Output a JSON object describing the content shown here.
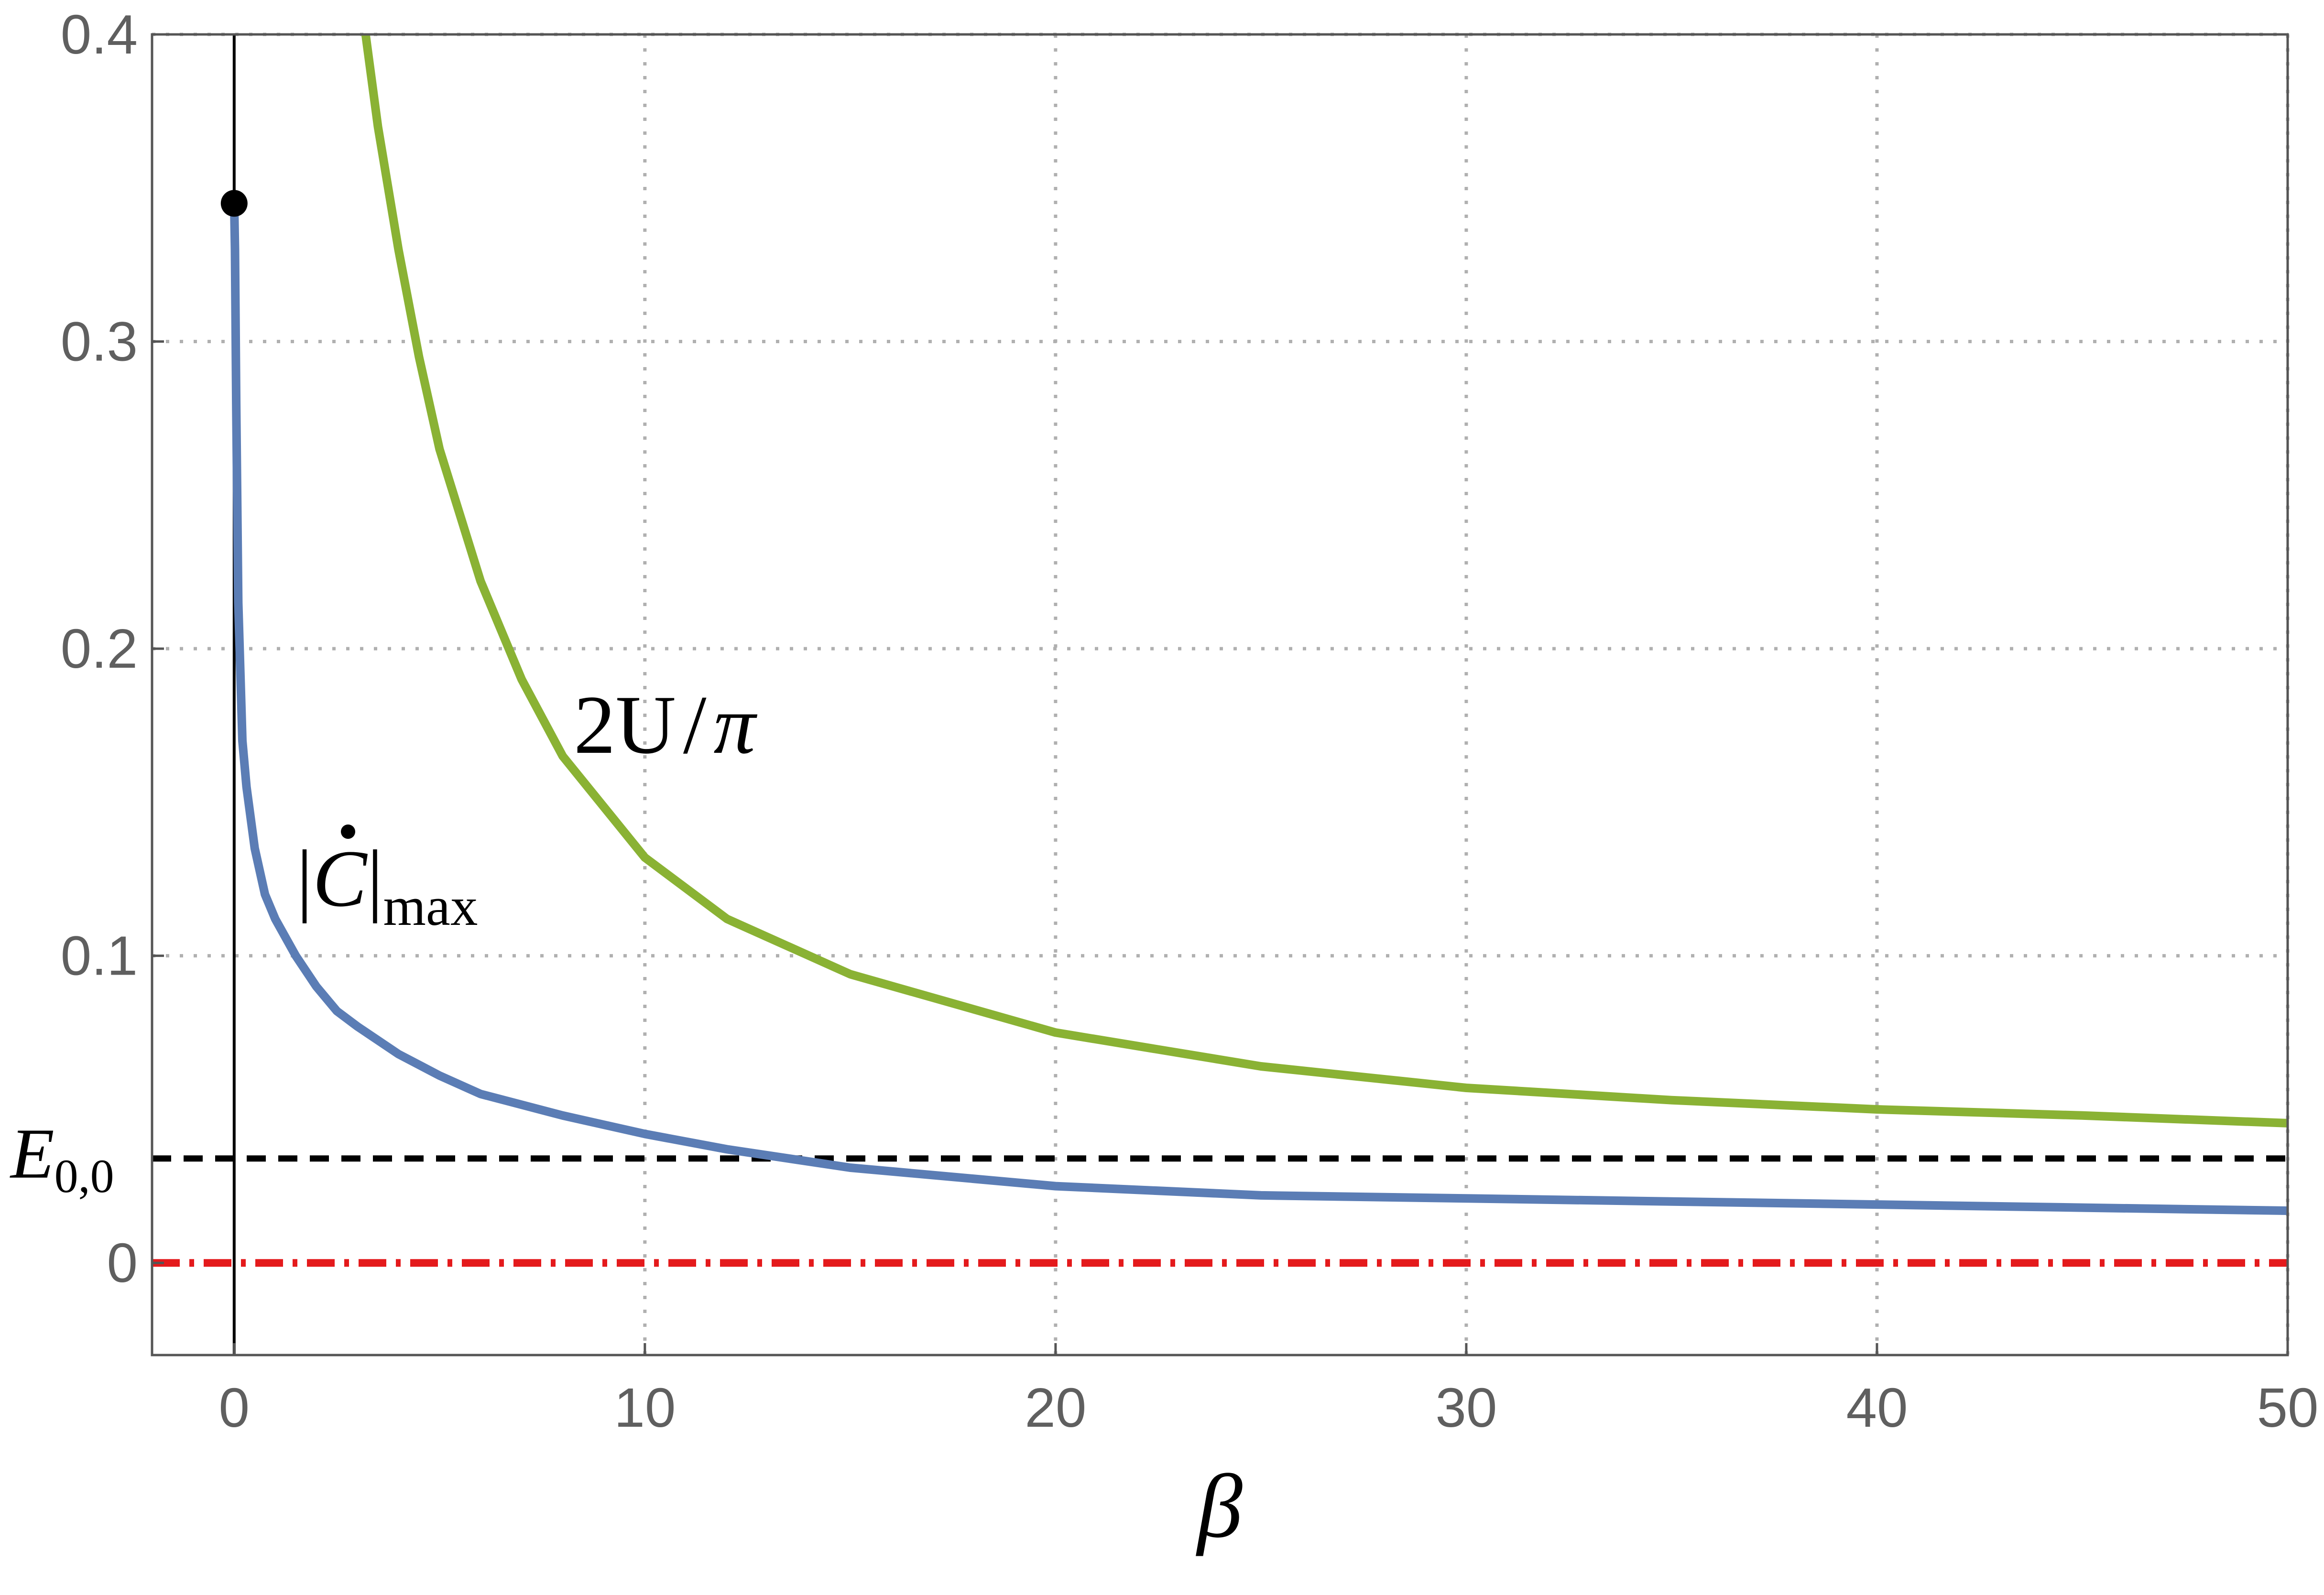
{
  "chart_data": {
    "type": "line",
    "xlabel": "β",
    "ylabel": "",
    "xlim": [
      -2,
      50
    ],
    "ylim": [
      -0.03,
      0.4
    ],
    "x_ticks": [
      "0",
      "10",
      "20",
      "30",
      "40",
      "50"
    ],
    "x_tick_values": [
      0,
      10,
      20,
      30,
      40,
      50
    ],
    "y_ticks": [
      "0",
      "0.1",
      "0.2",
      "0.3",
      "0.4"
    ],
    "y_tick_values": [
      0,
      0.1,
      0.2,
      0.3,
      0.4
    ],
    "grid": true,
    "series": [
      {
        "name": "|Ċ|max",
        "color": "#5b7db5",
        "x": [
          0,
          0.02,
          0.05,
          0.1,
          0.2,
          0.3,
          0.5,
          0.75,
          1,
          1.5,
          2,
          2.5,
          3,
          4,
          5,
          6,
          8,
          10,
          12,
          15,
          20,
          25,
          30,
          35,
          40,
          45,
          50
        ],
        "y": [
          0.345,
          0.33,
          0.28,
          0.215,
          0.17,
          0.155,
          0.135,
          0.12,
          0.112,
          0.1,
          0.09,
          0.082,
          0.077,
          0.068,
          0.061,
          0.055,
          0.048,
          0.042,
          0.037,
          0.031,
          0.025,
          0.022,
          0.021,
          0.02,
          0.019,
          0.018,
          0.017
        ]
      },
      {
        "name": "2U/π",
        "color": "#8ab234",
        "x": [
          3.2,
          3.5,
          4,
          4.5,
          5,
          6,
          7,
          8,
          10,
          12,
          15,
          20,
          25,
          30,
          35,
          40,
          45,
          50
        ],
        "y": [
          0.4,
          0.37,
          0.33,
          0.295,
          0.265,
          0.222,
          0.19,
          0.165,
          0.132,
          0.112,
          0.094,
          0.075,
          0.064,
          0.057,
          0.053,
          0.05,
          0.048,
          0.0455
        ]
      }
    ],
    "reference_lines": [
      {
        "name": "E_{0,0}",
        "y": 0.034,
        "color": "#000000",
        "style": "dashed"
      },
      {
        "name": "0",
        "y": 0,
        "color": "#e41a1c",
        "style": "dash-dot"
      }
    ],
    "vertical_line": {
      "x": 0,
      "color": "#000000"
    },
    "marker": {
      "x": 0,
      "y": 0.345,
      "color": "#000000"
    },
    "annotations": {
      "curve_c_label": "|Ċ|max",
      "curve_u_label": "2U/π",
      "e00_label": "E0,0"
    },
    "label_parts": {
      "c_bar_left": "|",
      "c_script": "C",
      "c_bar_right": "|",
      "c_sub": "max",
      "u_text": "2U",
      "u_slash": "/",
      "u_pi": "π",
      "e_main": "E",
      "e_sub": "0,0"
    }
  }
}
